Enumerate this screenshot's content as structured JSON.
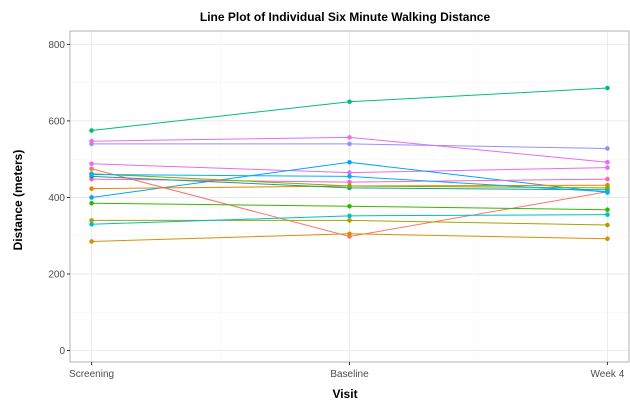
{
  "chart_data": {
    "type": "line",
    "title": "Line Plot of Individual Six Minute Walking Distance",
    "xlabel": "Visit",
    "ylabel": "Distance (meters)",
    "categories": [
      "Screening",
      "Baseline",
      "Week 4"
    ],
    "ylim": [
      -30,
      835
    ],
    "yticks": [
      0,
      200,
      400,
      600,
      800
    ],
    "grid": true,
    "legend": "none",
    "series": [
      {
        "color": "#F8766D",
        "values": [
          475,
          298,
          415
        ]
      },
      {
        "color": "#E76BF3",
        "values": [
          488,
          465,
          478
        ]
      },
      {
        "color": "#D89000",
        "values": [
          285,
          305,
          292
        ]
      },
      {
        "color": "#A3A500",
        "values": [
          340,
          340,
          328
        ]
      },
      {
        "color": "#39B600",
        "values": [
          385,
          377,
          368
        ]
      },
      {
        "color": "#00BF7D",
        "values": [
          575,
          650,
          686
        ]
      },
      {
        "color": "#00BFC4",
        "values": [
          330,
          352,
          355
        ]
      },
      {
        "color": "#00A5FF",
        "values": [
          400,
          492,
          413
        ]
      },
      {
        "color": "#9590FF",
        "values": [
          540,
          540,
          528
        ]
      },
      {
        "color": "#E76BF3",
        "values": [
          547,
          557,
          492
        ]
      },
      {
        "color": "#FF62BC",
        "values": [
          448,
          440,
          448
        ]
      },
      {
        "color": "#E58700",
        "values": [
          423,
          430,
          432
        ]
      },
      {
        "color": "#1F9E89",
        "values": [
          455,
          425,
          420
        ]
      },
      {
        "color": "#7CAE00",
        "values": [
          462,
          430,
          425
        ]
      },
      {
        "color": "#00B0F6",
        "values": [
          460,
          455,
          415
        ]
      }
    ]
  }
}
